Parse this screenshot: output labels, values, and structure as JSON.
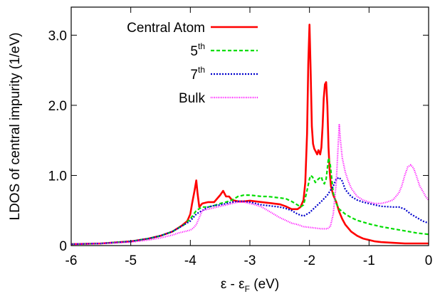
{
  "chart_data": {
    "type": "line",
    "xlabel": "ε - ε",
    "xlabel_sub": "F",
    "xlabel_unit": " (eV)",
    "ylabel": "LDOS of central impurity (1/eV)",
    "xlim": [
      -6,
      0
    ],
    "ylim": [
      0,
      3.4
    ],
    "xticks": [
      -6,
      -5,
      -4,
      -3,
      -2,
      -1,
      0
    ],
    "xtick_labels": [
      "-6",
      "-5",
      "-4",
      "-3",
      "-2",
      "-1",
      "0"
    ],
    "yticks": [
      0,
      1.0,
      2.0,
      3.0
    ],
    "ytick_labels": [
      "0",
      "1.0",
      "2.0",
      "3.0"
    ],
    "grid": false,
    "legend_position": "top-left",
    "series": [
      {
        "name": "Central Atom",
        "name_sup": "",
        "color": "#ff0000",
        "dash": "",
        "width": 2.6,
        "x": [
          -6.0,
          -5.5,
          -5.0,
          -4.7,
          -4.5,
          -4.3,
          -4.15,
          -4.05,
          -4.0,
          -3.97,
          -3.93,
          -3.9,
          -3.88,
          -3.85,
          -3.8,
          -3.7,
          -3.6,
          -3.5,
          -3.45,
          -3.4,
          -3.35,
          -3.3,
          -3.2,
          -3.1,
          -3.0,
          -2.9,
          -2.8,
          -2.7,
          -2.6,
          -2.5,
          -2.4,
          -2.3,
          -2.2,
          -2.15,
          -2.1,
          -2.07,
          -2.04,
          -2.02,
          -2.0,
          -1.98,
          -1.96,
          -1.94,
          -1.92,
          -1.9,
          -1.87,
          -1.85,
          -1.82,
          -1.8,
          -1.78,
          -1.76,
          -1.74,
          -1.72,
          -1.7,
          -1.68,
          -1.66,
          -1.64,
          -1.62,
          -1.6,
          -1.55,
          -1.5,
          -1.45,
          -1.4,
          -1.3,
          -1.2,
          -1.1,
          -1.0,
          -0.9,
          -0.8,
          -0.6,
          -0.4,
          -0.2,
          0.0
        ],
        "y": [
          0.02,
          0.03,
          0.06,
          0.1,
          0.14,
          0.2,
          0.28,
          0.35,
          0.45,
          0.6,
          0.78,
          0.93,
          0.75,
          0.55,
          0.6,
          0.62,
          0.62,
          0.72,
          0.78,
          0.7,
          0.7,
          0.65,
          0.63,
          0.63,
          0.64,
          0.63,
          0.62,
          0.61,
          0.6,
          0.59,
          0.56,
          0.52,
          0.52,
          0.55,
          0.65,
          0.9,
          1.6,
          2.6,
          3.15,
          2.5,
          1.7,
          1.45,
          1.38,
          1.35,
          1.3,
          1.36,
          1.3,
          1.4,
          1.7,
          2.1,
          2.3,
          2.33,
          2.0,
          1.4,
          1.05,
          0.85,
          0.78,
          0.72,
          0.62,
          0.48,
          0.38,
          0.3,
          0.2,
          0.14,
          0.1,
          0.08,
          0.06,
          0.05,
          0.04,
          0.03,
          0.03,
          0.03
        ]
      },
      {
        "name": "5",
        "name_sup": "th",
        "color": "#00dd00",
        "dash": "5,3",
        "width": 2.2,
        "x": [
          -6.0,
          -5.5,
          -5.0,
          -4.7,
          -4.5,
          -4.3,
          -4.2,
          -4.1,
          -4.0,
          -3.9,
          -3.8,
          -3.7,
          -3.6,
          -3.5,
          -3.4,
          -3.3,
          -3.2,
          -3.1,
          -3.0,
          -2.9,
          -2.8,
          -2.7,
          -2.6,
          -2.5,
          -2.4,
          -2.3,
          -2.2,
          -2.15,
          -2.1,
          -2.05,
          -2.0,
          -1.98,
          -1.95,
          -1.9,
          -1.85,
          -1.8,
          -1.78,
          -1.75,
          -1.72,
          -1.7,
          -1.68,
          -1.65,
          -1.62,
          -1.6,
          -1.55,
          -1.5,
          -1.4,
          -1.3,
          -1.2,
          -1.0,
          -0.8,
          -0.6,
          -0.4,
          -0.2,
          0.0
        ],
        "y": [
          0.02,
          0.03,
          0.06,
          0.1,
          0.14,
          0.2,
          0.25,
          0.3,
          0.38,
          0.5,
          0.55,
          0.55,
          0.57,
          0.6,
          0.62,
          0.65,
          0.7,
          0.72,
          0.72,
          0.71,
          0.7,
          0.7,
          0.69,
          0.68,
          0.67,
          0.63,
          0.58,
          0.55,
          0.58,
          0.75,
          0.95,
          1.0,
          0.98,
          0.9,
          0.95,
          0.98,
          0.92,
          0.88,
          0.95,
          1.1,
          1.25,
          1.15,
          0.9,
          0.75,
          0.6,
          0.52,
          0.45,
          0.4,
          0.36,
          0.31,
          0.27,
          0.24,
          0.21,
          0.18,
          0.16
        ]
      },
      {
        "name": "7",
        "name_sup": "th",
        "color": "#0000cc",
        "dash": "2,2",
        "width": 2.2,
        "x": [
          -6.0,
          -5.5,
          -5.0,
          -4.7,
          -4.5,
          -4.3,
          -4.2,
          -4.1,
          -4.0,
          -3.9,
          -3.8,
          -3.7,
          -3.6,
          -3.5,
          -3.4,
          -3.3,
          -3.2,
          -3.1,
          -3.0,
          -2.9,
          -2.8,
          -2.7,
          -2.6,
          -2.5,
          -2.4,
          -2.3,
          -2.2,
          -2.1,
          -2.0,
          -1.9,
          -1.8,
          -1.7,
          -1.6,
          -1.55,
          -1.5,
          -1.45,
          -1.4,
          -1.3,
          -1.2,
          -1.1,
          -1.0,
          -0.8,
          -0.6,
          -0.5,
          -0.4,
          -0.3,
          -0.2,
          -0.1,
          0.0
        ],
        "y": [
          0.02,
          0.03,
          0.06,
          0.1,
          0.14,
          0.2,
          0.25,
          0.3,
          0.35,
          0.45,
          0.5,
          0.55,
          0.57,
          0.58,
          0.6,
          0.62,
          0.63,
          0.63,
          0.62,
          0.6,
          0.58,
          0.57,
          0.56,
          0.55,
          0.53,
          0.5,
          0.45,
          0.42,
          0.47,
          0.55,
          0.63,
          0.72,
          0.85,
          0.95,
          0.97,
          0.92,
          0.8,
          0.7,
          0.65,
          0.62,
          0.6,
          0.56,
          0.55,
          0.55,
          0.52,
          0.45,
          0.4,
          0.35,
          0.32
        ]
      },
      {
        "name": "Bulk",
        "name_sup": "",
        "color": "#ff00ff",
        "dash": "1,1.5",
        "width": 2.2,
        "x": [
          -6.0,
          -5.5,
          -5.0,
          -4.7,
          -4.5,
          -4.3,
          -4.2,
          -4.1,
          -4.0,
          -3.95,
          -3.9,
          -3.85,
          -3.8,
          -3.7,
          -3.6,
          -3.5,
          -3.4,
          -3.3,
          -3.2,
          -3.1,
          -3.0,
          -2.9,
          -2.8,
          -2.7,
          -2.6,
          -2.5,
          -2.4,
          -2.3,
          -2.2,
          -2.1,
          -2.0,
          -1.9,
          -1.8,
          -1.7,
          -1.65,
          -1.6,
          -1.55,
          -1.52,
          -1.5,
          -1.48,
          -1.45,
          -1.4,
          -1.35,
          -1.3,
          -1.2,
          -1.1,
          -1.0,
          -0.9,
          -0.8,
          -0.7,
          -0.6,
          -0.5,
          -0.45,
          -0.4,
          -0.35,
          -0.3,
          -0.25,
          -0.2,
          -0.15,
          -0.1,
          -0.05,
          0.0
        ],
        "y": [
          0.02,
          0.03,
          0.05,
          0.08,
          0.11,
          0.15,
          0.18,
          0.2,
          0.22,
          0.25,
          0.3,
          0.4,
          0.5,
          0.52,
          0.54,
          0.56,
          0.58,
          0.6,
          0.62,
          0.62,
          0.6,
          0.58,
          0.55,
          0.5,
          0.45,
          0.4,
          0.36,
          0.32,
          0.3,
          0.27,
          0.26,
          0.25,
          0.24,
          0.24,
          0.27,
          0.45,
          0.9,
          1.4,
          1.72,
          1.5,
          1.25,
          1.05,
          0.92,
          0.82,
          0.7,
          0.65,
          0.62,
          0.6,
          0.6,
          0.62,
          0.65,
          0.75,
          0.85,
          1.0,
          1.12,
          1.15,
          1.1,
          0.98,
          0.85,
          0.78,
          0.7,
          0.65
        ]
      }
    ]
  }
}
